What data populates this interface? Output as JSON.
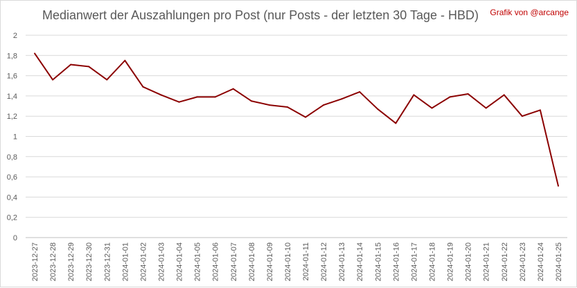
{
  "chart_data": {
    "type": "line",
    "title": "Medianwert der Auszahlungen pro Post (nur Posts - der letzten 30 Tage - HBD)",
    "credit": "Grafik von @arcange",
    "xlabel": "",
    "ylabel": "",
    "ylim": [
      0,
      2
    ],
    "yticks": [
      "0",
      "0,2",
      "0,4",
      "0,6",
      "0,8",
      "1",
      "1,2",
      "1,4",
      "1,6",
      "1,8",
      "2"
    ],
    "grid": true,
    "legend": "none",
    "categories": [
      "2023-12-27",
      "2023-12-28",
      "2023-12-29",
      "2023-12-30",
      "2023-12-31",
      "2024-01-01",
      "2024-01-02",
      "2024-01-03",
      "2024-01-04",
      "2024-01-05",
      "2024-01-06",
      "2024-01-07",
      "2024-01-08",
      "2024-01-09",
      "2024-01-10",
      "2024-01-11",
      "2024-01-12",
      "2024-01-13",
      "2024-01-14",
      "2024-01-15",
      "2024-01-16",
      "2024-01-17",
      "2024-01-18",
      "2024-01-19",
      "2024-01-20",
      "2024-01-21",
      "2024-01-22",
      "2024-01-23",
      "2024-01-24",
      "2024-01-25"
    ],
    "series": [
      {
        "values": [
          1.82,
          1.56,
          1.71,
          1.69,
          1.56,
          1.75,
          1.49,
          1.41,
          1.34,
          1.39,
          1.39,
          1.47,
          1.35,
          1.31,
          1.29,
          1.19,
          1.31,
          1.37,
          1.44,
          1.27,
          1.13,
          1.41,
          1.28,
          1.39,
          1.42,
          1.28,
          1.41,
          1.2,
          1.26,
          0.51
        ],
        "color": "#8b0000"
      }
    ],
    "colors": {
      "credit": "#c00000",
      "line": "#8b0000"
    }
  }
}
